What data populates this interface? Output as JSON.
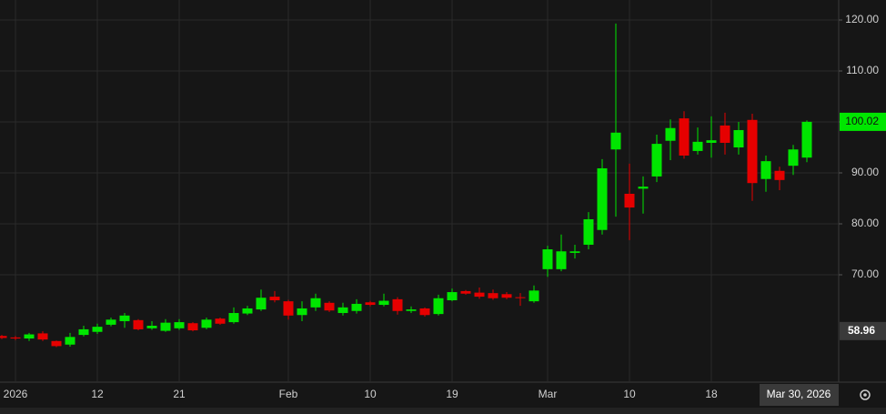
{
  "chart_data": {
    "type": "candlestick",
    "categories": [
      null,
      "2026",
      null,
      null,
      null,
      null,
      null,
      "12",
      null,
      null,
      null,
      null,
      null,
      "21",
      null,
      null,
      null,
      null,
      null,
      null,
      null,
      "Feb",
      null,
      null,
      null,
      null,
      null,
      "10",
      null,
      null,
      null,
      null,
      null,
      "19",
      null,
      null,
      null,
      null,
      null,
      null,
      "Mar",
      null,
      null,
      null,
      null,
      null,
      "10",
      null,
      null,
      null,
      null,
      null,
      "18",
      null,
      null,
      null,
      null,
      null,
      null,
      null
    ],
    "open": [
      58.0,
      57.7,
      57.5,
      58.5,
      57.0,
      56.3,
      58.2,
      58.8,
      60.2,
      60.9,
      61.1,
      59.5,
      59.0,
      59.5,
      60.5,
      59.6,
      61.4,
      60.7,
      62.4,
      63.2,
      65.7,
      64.8,
      62.1,
      63.6,
      64.5,
      62.5,
      62.9,
      64.6,
      64.1,
      65.2,
      62.9,
      63.4,
      62.3,
      65.0,
      66.8,
      66.5,
      66.4,
      66.2,
      65.6,
      64.8,
      71.1,
      71.1,
      74.3,
      75.9,
      78.8,
      94.6,
      85.9,
      86.9,
      89.3,
      96.3,
      100.7,
      94.3,
      95.9,
      99.3,
      95.0,
      100.4,
      88.8,
      90.4,
      91.4,
      93.0
    ],
    "high": [
      58.2,
      58.0,
      58.6,
      58.9,
      57.1,
      58.6,
      60.0,
      60.4,
      61.6,
      62.5,
      61.3,
      60.9,
      61.3,
      61.3,
      60.7,
      61.6,
      61.6,
      63.6,
      63.9,
      67.1,
      66.8,
      65.1,
      64.8,
      66.3,
      64.8,
      64.5,
      65.2,
      64.9,
      66.3,
      65.6,
      63.8,
      63.6,
      66.1,
      67.3,
      67.0,
      67.5,
      67.1,
      66.6,
      66.4,
      67.9,
      75.7,
      77.9,
      75.9,
      82.3,
      92.7,
      119.3,
      91.8,
      89.3,
      97.5,
      100.5,
      102.1,
      98.9,
      101.1,
      101.8,
      100.0,
      101.6,
      93.4,
      91.2,
      95.5,
      100.3
    ],
    "low": [
      57.4,
      57.2,
      57.0,
      57.0,
      55.8,
      55.9,
      57.9,
      58.4,
      59.9,
      59.6,
      59.1,
      59.2,
      58.8,
      59.2,
      58.9,
      59.3,
      60.2,
      60.4,
      62.1,
      62.9,
      64.6,
      61.2,
      60.9,
      62.9,
      62.7,
      62.0,
      62.4,
      63.8,
      63.8,
      62.2,
      62.5,
      61.8,
      62.0,
      64.8,
      66.1,
      65.3,
      65.1,
      65.2,
      63.9,
      64.5,
      69.6,
      70.7,
      73.2,
      75.0,
      77.9,
      81.4,
      76.8,
      82.0,
      88.2,
      92.5,
      92.8,
      93.6,
      93.0,
      93.6,
      93.6,
      84.5,
      86.3,
      86.6,
      89.6,
      92.1
    ],
    "close": [
      57.6,
      57.5,
      58.3,
      57.3,
      56.0,
      57.8,
      59.3,
      59.8,
      61.2,
      62.0,
      59.3,
      60.0,
      60.6,
      60.7,
      59.1,
      61.2,
      60.4,
      62.5,
      63.4,
      65.5,
      65.0,
      62.0,
      63.4,
      65.4,
      63.0,
      63.6,
      64.3,
      64.1,
      64.9,
      62.9,
      63.2,
      62.1,
      65.4,
      66.6,
      66.3,
      65.7,
      65.4,
      65.5,
      65.5,
      66.9,
      75.0,
      74.6,
      74.6,
      80.9,
      90.9,
      97.9,
      83.2,
      87.3,
      95.7,
      98.8,
      93.4,
      96.1,
      96.4,
      95.9,
      98.4,
      88.0,
      92.3,
      88.6,
      94.6,
      100.02
    ],
    "up_color": "#00e600",
    "down_color": "#e60000",
    "ylim": [
      48.93,
      123.93
    ],
    "yticks": [
      {
        "value": 70,
        "label": "70.00"
      },
      {
        "value": 80,
        "label": "80.00"
      },
      {
        "value": 90,
        "label": "90.00"
      },
      {
        "value": 100,
        "label": "100.00"
      },
      {
        "value": 110,
        "label": "110.00"
      },
      {
        "value": 120,
        "label": "120.00"
      }
    ],
    "grid": true,
    "crosshair_price": 58.96,
    "crosshair_date": "Mar 30, 2026"
  }
}
